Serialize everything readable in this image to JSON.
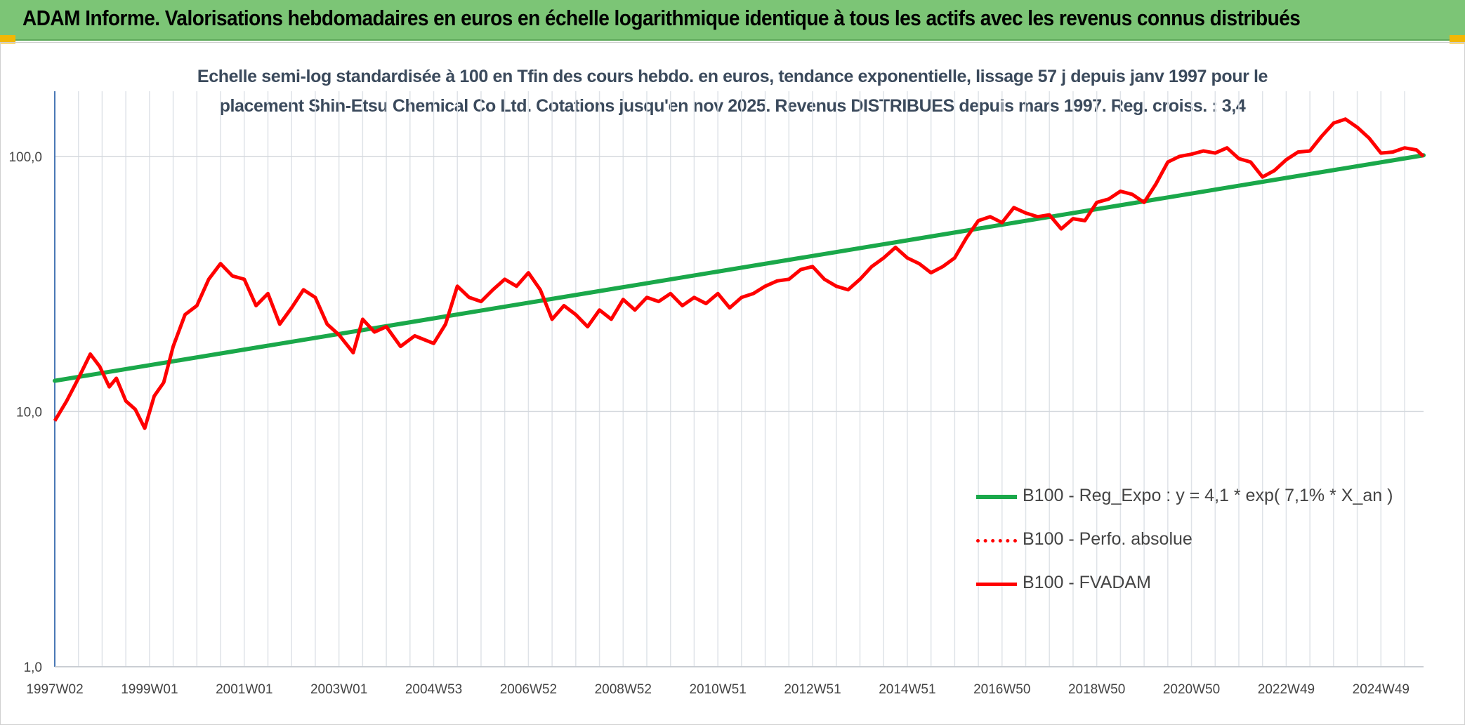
{
  "header": {
    "title": "ADAM Informe. Valorisations hebdomadaires en euros en échelle logarithmique identique à tous les actifs avec les revenus connus distribués"
  },
  "chart_data": {
    "type": "line",
    "title_line1": "Echelle semi-log standardisée à 100 en Tfin des cours hebdo. en euros, tendance exponentielle, lissage 57 j depuis janv 1997 pour le",
    "title_line2": "placement Shin-Etsu Chemical Co Ltd. Cotations jusqu'en nov 2025. Revenus DISTRIBUES depuis mars 1997. Reg. croiss. : 3,4",
    "y_scale": "log",
    "ylim": [
      1,
      180
    ],
    "y_ticks": [
      1,
      10,
      100
    ],
    "y_tick_labels": [
      "1,0",
      "10,0",
      "100,0"
    ],
    "xlim": [
      1997.0,
      2025.9
    ],
    "x_ticks": [
      1997.0,
      1999.0,
      2001.0,
      2003.0,
      2005.0,
      2007.0,
      2009.0,
      2011.0,
      2013.0,
      2015.0,
      2017.0,
      2019.0,
      2021.0,
      2023.0,
      2025.0
    ],
    "x_tick_labels": [
      "1997W02",
      "1999W01",
      "2001W01",
      "2003W01",
      "2004W53",
      "2006W52",
      "2008W52",
      "2010W51",
      "2012W51",
      "2014W51",
      "2016W50",
      "2018W50",
      "2020W50",
      "2022W49",
      "2024W49"
    ],
    "grid": true,
    "legend_position": "bottom-right",
    "series": [
      {
        "name": "B100 - Reg_Expo : y = 4,1 * exp( 7,1% *  X_an )",
        "color": "#1aa84a",
        "style": "solid-thick",
        "x": [
          1997.0,
          2025.9
        ],
        "y": [
          13.2,
          101
        ]
      },
      {
        "name": "B100 - Perfo. absolue",
        "color": "#ff0000",
        "style": "dotted",
        "x": [],
        "y": []
      },
      {
        "name": "B100 - FVADAM",
        "color": "#ff0000",
        "style": "solid",
        "x": [
          1997.0,
          1997.25,
          1997.5,
          1997.75,
          1997.95,
          1998.15,
          1998.3,
          1998.5,
          1998.7,
          1998.9,
          1999.1,
          1999.3,
          1999.5,
          1999.75,
          2000.0,
          2000.25,
          2000.5,
          2000.75,
          2001.0,
          2001.25,
          2001.5,
          2001.75,
          2002.0,
          2002.25,
          2002.5,
          2002.75,
          2003.0,
          2003.3,
          2003.5,
          2003.75,
          2004.0,
          2004.3,
          2004.6,
          2005.0,
          2005.25,
          2005.5,
          2005.75,
          2006.0,
          2006.25,
          2006.5,
          2006.75,
          2007.0,
          2007.25,
          2007.5,
          2007.75,
          2008.0,
          2008.25,
          2008.5,
          2008.75,
          2009.0,
          2009.25,
          2009.5,
          2009.75,
          2010.0,
          2010.25,
          2010.5,
          2010.75,
          2011.0,
          2011.25,
          2011.5,
          2011.75,
          2012.0,
          2012.25,
          2012.5,
          2012.75,
          2013.0,
          2013.25,
          2013.5,
          2013.75,
          2014.0,
          2014.25,
          2014.5,
          2014.75,
          2015.0,
          2015.25,
          2015.5,
          2015.75,
          2016.0,
          2016.25,
          2016.5,
          2016.75,
          2017.0,
          2017.25,
          2017.5,
          2017.75,
          2018.0,
          2018.25,
          2018.5,
          2018.75,
          2019.0,
          2019.25,
          2019.5,
          2019.75,
          2020.0,
          2020.25,
          2020.5,
          2020.75,
          2021.0,
          2021.25,
          2021.5,
          2021.75,
          2022.0,
          2022.25,
          2022.5,
          2022.75,
          2023.0,
          2023.25,
          2023.5,
          2023.75,
          2024.0,
          2024.25,
          2024.5,
          2024.75,
          2025.0,
          2025.25,
          2025.5,
          2025.75,
          2025.9
        ],
        "y": [
          9.2,
          11.0,
          13.5,
          16.8,
          15.0,
          12.5,
          13.5,
          11.0,
          10.2,
          8.6,
          11.5,
          13.0,
          18.0,
          24.0,
          26.0,
          33.0,
          38.0,
          34.0,
          33.0,
          26.0,
          29.0,
          22.0,
          25.5,
          30.0,
          28.0,
          22.0,
          20.0,
          17.0,
          23.0,
          20.5,
          21.5,
          18.0,
          19.8,
          18.5,
          22.0,
          31.0,
          28.0,
          27.0,
          30.0,
          33.0,
          31.0,
          35.0,
          30.0,
          23.0,
          26.0,
          24.0,
          21.5,
          25.0,
          23.0,
          27.5,
          25.0,
          28.0,
          27.0,
          29.0,
          26.0,
          28.0,
          26.5,
          29.0,
          25.5,
          28.0,
          29.0,
          31.0,
          32.5,
          33.0,
          36.0,
          37.0,
          33.0,
          31.0,
          30.0,
          33.0,
          37.0,
          40.0,
          44.0,
          40.0,
          38.0,
          35.0,
          37.0,
          40.0,
          48.0,
          56.0,
          58.0,
          55.0,
          63.0,
          60.0,
          58.0,
          59.0,
          52.0,
          57.0,
          56.0,
          66.0,
          68.0,
          73.0,
          71.0,
          66.0,
          78.0,
          95.0,
          100.0,
          102.0,
          105.0,
          103.0,
          108.0,
          98.0,
          95.0,
          83.0,
          88.0,
          97.0,
          104.0,
          105.0,
          120.0,
          135.0,
          140.0,
          130.0,
          118.0,
          103.0,
          104.0,
          108.0,
          106.0,
          100.0
        ]
      }
    ]
  }
}
